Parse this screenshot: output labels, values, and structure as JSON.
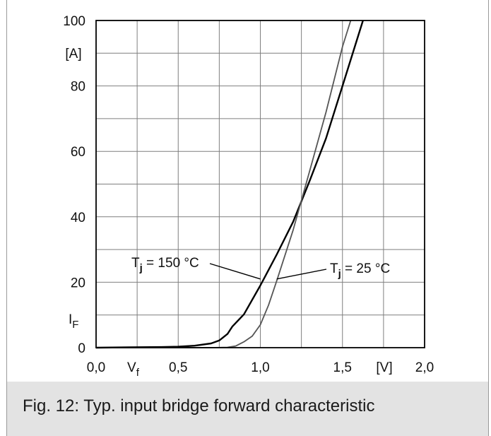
{
  "caption": "Fig. 12: Typ. input bridge forward characteristic",
  "colors": {
    "curve_150": "#000000",
    "curve_25": "#555555",
    "grid": "#7f7f7f",
    "caption_bg": "#e3e3e3"
  },
  "chart_data": {
    "type": "line",
    "title": "",
    "xlim": [
      0,
      2.0
    ],
    "ylim": [
      0,
      100
    ],
    "x_ticks": [
      {
        "value": 0.0,
        "label": "0,0"
      },
      {
        "value": 0.5,
        "label": "0,5"
      },
      {
        "value": 1.0,
        "label": "1,0"
      },
      {
        "value": 1.5,
        "label": "1,5"
      },
      {
        "value": 2.0,
        "label": "2,0"
      }
    ],
    "y_ticks": [
      {
        "value": 0,
        "label": "0"
      },
      {
        "value": 20,
        "label": "20"
      },
      {
        "value": 40,
        "label": "40"
      },
      {
        "value": 60,
        "label": "60"
      },
      {
        "value": 80,
        "label": "80"
      },
      {
        "value": 100,
        "label": "100"
      }
    ],
    "x_grid_step": 0.25,
    "y_grid_step": 10,
    "grid": true,
    "xlabel": {
      "main": "V",
      "sub": "f"
    },
    "xunit": "[V]",
    "ylabel": {
      "main": "I",
      "sub": "F"
    },
    "yunit": "[A]",
    "series": [
      {
        "name": "T_j = 150 °C",
        "label_main": "T",
        "label_sub": "j",
        "label_rest": " = 150 °C",
        "color": "#000000",
        "points": [
          [
            0,
            0
          ],
          [
            0.2,
            0.1
          ],
          [
            0.4,
            0.2
          ],
          [
            0.5,
            0.3
          ],
          [
            0.6,
            0.6
          ],
          [
            0.7,
            1.3
          ],
          [
            0.75,
            2.2
          ],
          [
            0.8,
            4.2
          ],
          [
            0.83,
            6.5
          ],
          [
            0.9,
            10.2
          ],
          [
            1.0,
            19
          ],
          [
            1.1,
            28.5
          ],
          [
            1.2,
            38.5
          ],
          [
            1.3,
            51
          ],
          [
            1.4,
            64
          ],
          [
            1.5,
            80
          ],
          [
            1.6,
            96
          ],
          [
            1.625,
            100
          ]
        ]
      },
      {
        "name": "T_j = 25 °C",
        "label_main": "T",
        "label_sub": "j",
        "label_rest": " = 25 °C",
        "color": "#555555",
        "points": [
          [
            0,
            0
          ],
          [
            0.5,
            0
          ],
          [
            0.7,
            0
          ],
          [
            0.8,
            0.1
          ],
          [
            0.85,
            0.5
          ],
          [
            0.9,
            1.8
          ],
          [
            0.95,
            3.5
          ],
          [
            1.0,
            7
          ],
          [
            1.05,
            13
          ],
          [
            1.1,
            20.5
          ],
          [
            1.2,
            36
          ],
          [
            1.3,
            54
          ],
          [
            1.4,
            72
          ],
          [
            1.5,
            92
          ],
          [
            1.55,
            100
          ]
        ]
      }
    ],
    "annotations": [
      {
        "series": 0,
        "point": [
          1.0,
          21
        ]
      },
      {
        "series": 1,
        "point": [
          1.1,
          21
        ]
      }
    ]
  }
}
